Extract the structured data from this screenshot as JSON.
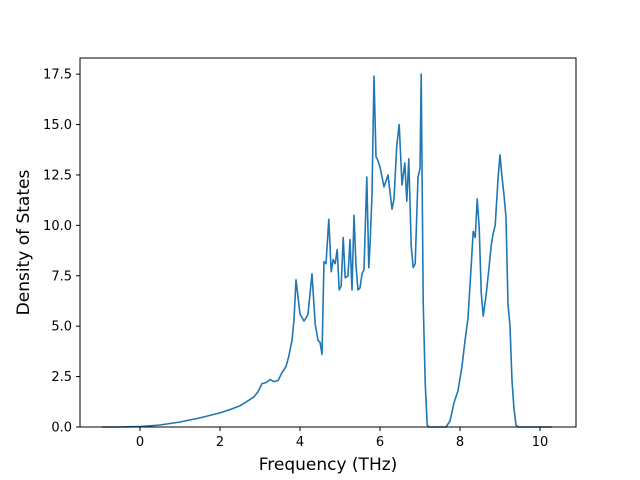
{
  "chart_data": {
    "type": "line",
    "title": "",
    "xlabel": "Frequency (THz)",
    "ylabel": "Density of States",
    "xlim": [
      -1.5,
      10.9
    ],
    "ylim": [
      0.0,
      18.3
    ],
    "xticks": [
      0,
      2,
      4,
      6,
      8,
      10
    ],
    "yticks": [
      0.0,
      2.5,
      5.0,
      7.5,
      10.0,
      12.5,
      15.0,
      17.5
    ],
    "xtick_labels": [
      "0",
      "2",
      "4",
      "6",
      "8",
      "10"
    ],
    "ytick_labels": [
      "0.0",
      "2.5",
      "5.0",
      "7.5",
      "10.0",
      "12.5",
      "15.0",
      "17.5"
    ],
    "grid": false,
    "legend": "none",
    "series": [
      {
        "color": "#1f77b4",
        "x": [
          -0.95,
          -0.5,
          0.0,
          0.5,
          1.0,
          1.5,
          2.0,
          2.3,
          2.5,
          2.7,
          2.85,
          2.95,
          3.05,
          3.15,
          3.25,
          3.35,
          3.45,
          3.55,
          3.65,
          3.72,
          3.8,
          3.85,
          3.9,
          4.0,
          4.1,
          4.15,
          4.2,
          4.3,
          4.38,
          4.45,
          4.5,
          4.55,
          4.6,
          4.65,
          4.72,
          4.78,
          4.83,
          4.88,
          4.93,
          4.98,
          5.03,
          5.08,
          5.13,
          5.2,
          5.25,
          5.3,
          5.35,
          5.4,
          5.45,
          5.5,
          5.55,
          5.6,
          5.67,
          5.72,
          5.75,
          5.8,
          5.85,
          5.9,
          5.93,
          6.0,
          6.1,
          6.2,
          6.3,
          6.35,
          6.42,
          6.48,
          6.55,
          6.62,
          6.67,
          6.72,
          6.78,
          6.83,
          6.88,
          6.95,
          7.0,
          7.03,
          7.08,
          7.13,
          7.18,
          7.22,
          7.27,
          7.35,
          7.5,
          7.65,
          7.75,
          7.85,
          7.95,
          8.05,
          8.12,
          8.2,
          8.28,
          8.33,
          8.38,
          8.43,
          8.48,
          8.53,
          8.58,
          8.65,
          8.72,
          8.78,
          8.83,
          8.88,
          8.95,
          9.0,
          9.05,
          9.1,
          9.15,
          9.2,
          9.25,
          9.3,
          9.35,
          9.4,
          9.45,
          9.5,
          9.7,
          10.0,
          10.3
        ],
        "y": [
          0.0,
          0.0,
          0.02,
          0.1,
          0.25,
          0.45,
          0.7,
          0.9,
          1.05,
          1.3,
          1.5,
          1.75,
          2.15,
          2.2,
          2.35,
          2.25,
          2.3,
          2.7,
          3.0,
          3.5,
          4.3,
          5.3,
          7.3,
          5.6,
          5.25,
          5.4,
          5.6,
          7.6,
          5.1,
          4.3,
          4.2,
          3.6,
          8.2,
          8.1,
          10.3,
          7.7,
          8.3,
          8.1,
          8.8,
          6.8,
          7.0,
          9.4,
          7.4,
          7.5,
          9.3,
          6.8,
          10.5,
          8.0,
          6.8,
          6.9,
          7.6,
          7.8,
          12.4,
          7.9,
          9.0,
          11.5,
          17.4,
          13.4,
          13.3,
          12.9,
          11.9,
          12.5,
          10.8,
          11.3,
          14.0,
          15.0,
          12.0,
          13.1,
          11.2,
          13.3,
          9.0,
          7.9,
          8.1,
          12.4,
          12.8,
          17.5,
          6.2,
          2.2,
          0.1,
          0.0,
          0.0,
          0.0,
          0.0,
          0.0,
          0.3,
          1.2,
          1.8,
          3.0,
          4.2,
          5.4,
          8.0,
          9.7,
          9.4,
          11.3,
          9.9,
          6.7,
          5.5,
          6.5,
          7.8,
          9.0,
          9.6,
          10.0,
          12.3,
          13.5,
          12.4,
          11.5,
          10.4,
          6.1,
          5.0,
          2.3,
          0.9,
          0.1,
          0.0,
          0.0,
          0.0,
          0.0,
          0.0
        ]
      }
    ]
  }
}
